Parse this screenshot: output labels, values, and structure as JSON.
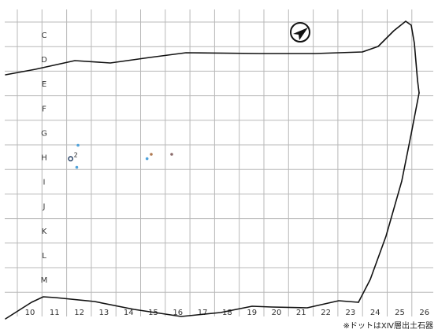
{
  "grid": {
    "rows": [
      "C",
      "D",
      "E",
      "F",
      "G",
      "H",
      "I",
      "J",
      "K",
      "L",
      "M"
    ],
    "columns": [
      "10",
      "11",
      "12",
      "13",
      "14",
      "15",
      "16",
      "17",
      "18",
      "19",
      "20",
      "21",
      "22",
      "23",
      "24",
      "25",
      "26"
    ]
  },
  "dots": [
    {
      "col": 11.65,
      "row": 5.1,
      "color": "#1f3a5f",
      "label": "2",
      "ring": true
    },
    {
      "col": 11.95,
      "row": 4.55,
      "color": "#4fa3dc",
      "label": ""
    },
    {
      "col": 11.9,
      "row": 5.45,
      "color": "#4fa3dc",
      "label": ""
    },
    {
      "col": 14.75,
      "row": 5.1,
      "color": "#4fa3dc",
      "label": ""
    },
    {
      "col": 14.92,
      "row": 4.92,
      "color": "#b07a52",
      "label": ""
    },
    {
      "col": 15.75,
      "row": 4.92,
      "color": "#8a6a6a",
      "label": ""
    }
  ],
  "north_arrow": {
    "icon": "north-arrow-icon"
  },
  "note": "※ドットはⅩⅣ層出土石器"
}
